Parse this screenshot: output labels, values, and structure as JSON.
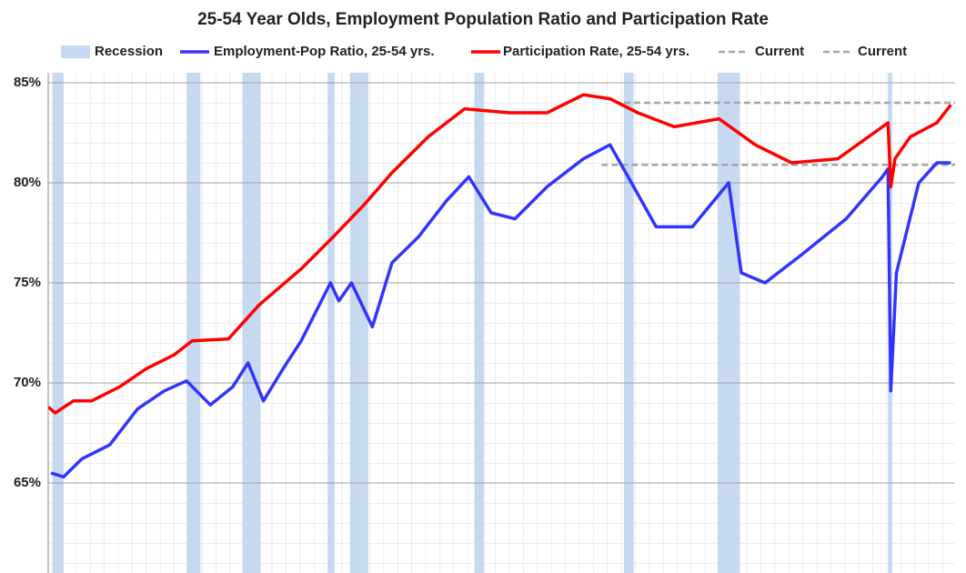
{
  "chart_data": {
    "type": "line",
    "title": "25-54 Year Olds, Employment Population Ratio and Participation Rate",
    "xlim": [
      1960.0,
      2024.9
    ],
    "ylim": [
      60.5,
      85
    ],
    "yticks": [
      {
        "value": 65,
        "label": "65%"
      },
      {
        "value": 70,
        "label": "70%"
      },
      {
        "value": 75,
        "label": "75%"
      },
      {
        "value": 80,
        "label": "80%"
      },
      {
        "value": 85,
        "label": "85%"
      }
    ],
    "grid": true,
    "recession_name": "Recession",
    "recession_color": "#c6d9f1",
    "recessions": [
      [
        1960.3,
        1961.1
      ],
      [
        1969.9,
        1970.9
      ],
      [
        1973.9,
        1975.2
      ],
      [
        1980.0,
        1980.5
      ],
      [
        1981.6,
        1982.9
      ],
      [
        1990.5,
        1991.2
      ],
      [
        2001.2,
        2001.9
      ],
      [
        2007.9,
        2009.5
      ],
      [
        2020.1,
        2020.4
      ]
    ],
    "series": [
      {
        "name": "Employment-Pop Ratio, 25-54 yrs.",
        "color": "#3333ff",
        "x": [
          1960.2,
          1961.1,
          1962.4,
          1964.4,
          1966.4,
          1968.3,
          1969.9,
          1971.6,
          1973.2,
          1974.3,
          1975.4,
          1976.8,
          1978.1,
          1980.2,
          1980.8,
          1981.7,
          1983.2,
          1984.6,
          1986.5,
          1988.5,
          1990.1,
          1991.7,
          1993.4,
          1995.7,
          1998.3,
          2000.2,
          2001.5,
          2003.5,
          2006.1,
          2008.7,
          2009.6,
          2011.3,
          2013.9,
          2017.1,
          2019.7,
          2020.1,
          2020.3,
          2020.7,
          2022.3,
          2023.6,
          2024.6
        ],
        "values": [
          65.5,
          65.3,
          66.2,
          66.9,
          68.7,
          69.6,
          70.1,
          68.9,
          69.8,
          71.0,
          69.1,
          70.7,
          72.1,
          75.0,
          74.1,
          75.0,
          72.8,
          76.0,
          77.3,
          79.1,
          80.3,
          78.5,
          78.2,
          79.8,
          81.2,
          81.9,
          80.3,
          77.8,
          77.8,
          80.0,
          75.5,
          75.0,
          76.4,
          78.2,
          80.3,
          80.7,
          69.6,
          75.5,
          80.0,
          81.0,
          81.0
        ]
      },
      {
        "name": "Participation Rate, 25-54 yrs.",
        "color": "#ff0000",
        "x": [
          1960.0,
          1960.5,
          1961.8,
          1963.1,
          1965.1,
          1967.0,
          1969.0,
          1970.3,
          1972.9,
          1975.1,
          1978.1,
          1980.4,
          1982.6,
          1984.6,
          1987.2,
          1989.8,
          1993.0,
          1995.7,
          1998.3,
          2000.2,
          2002.2,
          2004.8,
          2008.0,
          2010.6,
          2013.2,
          2016.5,
          2020.1,
          2020.3,
          2020.6,
          2021.7,
          2023.6,
          2024.6
        ],
        "values": [
          68.8,
          68.5,
          69.1,
          69.1,
          69.8,
          70.7,
          71.4,
          72.1,
          72.2,
          73.9,
          75.7,
          77.3,
          78.9,
          80.5,
          82.3,
          83.7,
          83.5,
          83.5,
          84.4,
          84.2,
          83.5,
          82.8,
          83.2,
          81.9,
          81.0,
          81.2,
          83.0,
          79.8,
          81.2,
          82.3,
          83.0,
          83.9
        ]
      }
    ],
    "current_lines": [
      {
        "name": "Current",
        "color": "#a6a6a6",
        "value": 80.9,
        "x_start": 1999.6
      },
      {
        "name": "Current",
        "color": "#a6a6a6",
        "value": 84.0,
        "x_start": 2001.2
      }
    ]
  }
}
